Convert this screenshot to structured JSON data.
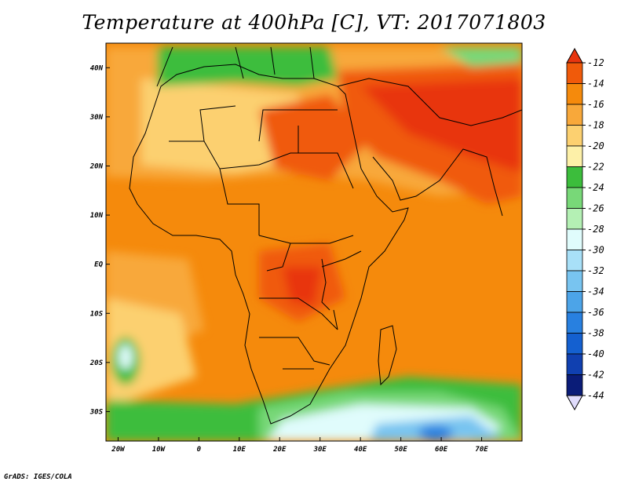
{
  "title": "Temperature at 400hPa [C], VT: 2017071803",
  "footer": "GrADS: IGES/COLA",
  "map": {
    "variable": "Temperature",
    "level": "400hPa",
    "units": "C",
    "valid_time": "2017071803",
    "lon_range": [
      -23,
      80
    ],
    "lat_range": [
      -36,
      45
    ],
    "lat_ticks": [
      "40N",
      "30N",
      "20N",
      "10N",
      "EQ",
      "10S",
      "20S",
      "30S"
    ],
    "lat_tick_values": [
      40,
      30,
      20,
      10,
      0,
      -10,
      -20,
      -30
    ],
    "lon_ticks": [
      "20W",
      "10W",
      "0",
      "10E",
      "20E",
      "30E",
      "40E",
      "50E",
      "60E",
      "70E"
    ],
    "lon_tick_values": [
      -20,
      -10,
      0,
      10,
      20,
      30,
      40,
      50,
      60,
      70
    ]
  },
  "colorbar": {
    "labels": [
      "-12",
      "-14",
      "-16",
      "-18",
      "-20",
      "-22",
      "-24",
      "-26",
      "-28",
      "-30",
      "-32",
      "-34",
      "-36",
      "-38",
      "-40",
      "-42",
      "-44"
    ],
    "colors": [
      "#e8350f",
      "#f05a0a",
      "#f58a0c",
      "#f8a83a",
      "#fcd070",
      "#fdf0a8",
      "#3cbd3c",
      "#78d878",
      "#b4f0b4",
      "#e0fcfc",
      "#a8e0f8",
      "#78c4f0",
      "#4ca4e8",
      "#2880e0",
      "#1460d0",
      "#1040b0",
      "#0a1c78",
      "#e0dcfc"
    ]
  }
}
